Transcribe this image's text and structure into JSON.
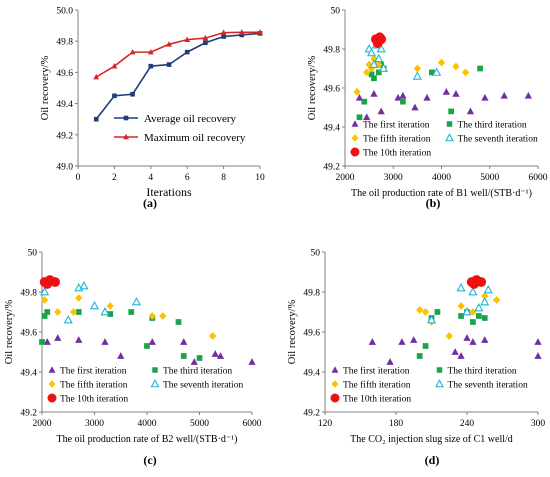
{
  "figure": {
    "title": "",
    "panel_labels": [
      "(a)",
      "(b)",
      "(c)",
      "(d)"
    ]
  },
  "chart_data": [
    {
      "panel": "(a)",
      "type": "line",
      "xlabel": "Iterations",
      "ylabel": "Oil recovery/%",
      "xlim": [
        0,
        10
      ],
      "ylim": [
        49.0,
        50.0
      ],
      "xticks": [
        "0",
        "2",
        "4",
        "6",
        "8",
        "10"
      ],
      "yticks": [
        "49.0",
        "49.2",
        "49.4",
        "49.6",
        "49.8",
        "50.0"
      ],
      "legend_position": "bottom-right",
      "grid": false,
      "series": [
        {
          "name": "Average oil recovery",
          "color": "#1f3f7a",
          "marker": "square",
          "x": [
            1,
            2,
            3,
            4,
            5,
            6,
            7,
            8,
            9,
            10
          ],
          "y": [
            49.3,
            49.45,
            49.46,
            49.64,
            49.65,
            49.73,
            49.79,
            49.83,
            49.84,
            49.85
          ]
        },
        {
          "name": "Maximum oil recovery",
          "color": "#d62728",
          "marker": "triangle",
          "x": [
            1,
            2,
            3,
            4,
            5,
            6,
            7,
            8,
            9,
            10
          ],
          "y": [
            49.57,
            49.64,
            49.73,
            49.73,
            49.78,
            49.81,
            49.82,
            49.855,
            49.857,
            49.857
          ]
        }
      ]
    },
    {
      "panel": "(b)",
      "type": "scatter",
      "xlabel": "The oil production rate of  B1 well/(STB·d⁻¹)",
      "ylabel": "Oil recovery/%",
      "xlim": [
        2000,
        6000
      ],
      "ylim": [
        49.2,
        50.0
      ],
      "xticks": [
        "2000",
        "3000",
        "4000",
        "5000",
        "6000"
      ],
      "yticks": [
        "49.2",
        "49.4",
        "49.6",
        "49.8",
        "50"
      ],
      "legend_position": "bottom",
      "grid": false,
      "series": [
        {
          "name": "The first iteration",
          "color": "#7030a0",
          "marker": "triangle",
          "x": [
            2300,
            2450,
            2600,
            2750,
            3100,
            3200,
            3450,
            3700,
            4100,
            4300,
            4600,
            4900,
            5300,
            5800
          ],
          "y": [
            49.55,
            49.45,
            49.57,
            49.48,
            49.55,
            49.56,
            49.5,
            49.55,
            49.58,
            49.57,
            49.48,
            49.55,
            49.56,
            49.56
          ]
        },
        {
          "name": "The third iteration",
          "color": "#1aa34a",
          "marker": "square",
          "x": [
            2300,
            2400,
            2550,
            2600,
            2700,
            2750,
            2800,
            3200,
            3800,
            4200,
            4800
          ],
          "y": [
            49.45,
            49.53,
            49.67,
            49.65,
            49.68,
            49.72,
            49.7,
            49.53,
            49.68,
            49.48,
            49.7
          ]
        },
        {
          "name": "The fifth iteration",
          "color": "#ffc000",
          "marker": "diamond",
          "x": [
            2250,
            2450,
            2500,
            2550,
            2600,
            2650,
            2700,
            3500,
            4000,
            4300,
            4500
          ],
          "y": [
            49.58,
            49.68,
            49.72,
            49.7,
            49.75,
            49.73,
            49.72,
            49.7,
            49.73,
            49.71,
            49.68
          ]
        },
        {
          "name": "The seventh iteration",
          "color": "#1fb4d8",
          "marker": "triangle-open",
          "x": [
            2500,
            2550,
            2600,
            2650,
            2700,
            2750,
            2800,
            3500,
            3900
          ],
          "y": [
            49.8,
            49.78,
            49.72,
            49.82,
            49.75,
            49.8,
            49.7,
            49.66,
            49.68
          ]
        },
        {
          "name": "The 10th iteration",
          "color": "#ee1111",
          "marker": "circle",
          "x": [
            2640,
            2680,
            2720,
            2750
          ],
          "y": [
            49.85,
            49.83,
            49.86,
            49.85
          ]
        }
      ]
    },
    {
      "panel": "(c)",
      "type": "scatter",
      "xlabel": "The oil production rate of  B2 well/(STB·d⁻¹)",
      "ylabel": "Oil recovery/%",
      "xlim": [
        2000,
        6000
      ],
      "ylim": [
        49.2,
        50.0
      ],
      "xticks": [
        "2000",
        "3000",
        "4000",
        "5000",
        "6000"
      ],
      "yticks": [
        "49.2",
        "49.4",
        "49.6",
        "49.8",
        "50"
      ],
      "legend_position": "bottom",
      "grid": false,
      "series": [
        {
          "name": "The first iteration",
          "color": "#7030a0",
          "marker": "triangle",
          "x": [
            2100,
            2300,
            2700,
            3200,
            3500,
            4100,
            4700,
            4900,
            5300,
            5400,
            6000
          ],
          "y": [
            49.55,
            49.57,
            49.56,
            49.55,
            49.48,
            49.55,
            49.55,
            49.45,
            49.49,
            49.48,
            49.45
          ]
        },
        {
          "name": "The third iteration",
          "color": "#1aa34a",
          "marker": "square",
          "x": [
            2000,
            2050,
            2100,
            2700,
            3300,
            3700,
            4000,
            4100,
            4600,
            4700,
            5000
          ],
          "y": [
            49.55,
            49.68,
            49.7,
            49.7,
            49.69,
            49.7,
            49.53,
            49.67,
            49.65,
            49.48,
            49.47
          ]
        },
        {
          "name": "The fifth iteration",
          "color": "#ffc000",
          "marker": "diamond",
          "x": [
            2050,
            2300,
            2600,
            2700,
            3300,
            4100,
            4300,
            5250
          ],
          "y": [
            49.76,
            49.7,
            49.7,
            49.77,
            49.73,
            49.68,
            49.68,
            49.58
          ]
        },
        {
          "name": "The seventh iteration",
          "color": "#1fb4d8",
          "marker": "triangle-open",
          "x": [
            2050,
            2500,
            2700,
            2800,
            3000,
            3200,
            3800
          ],
          "y": [
            49.8,
            49.66,
            49.82,
            49.83,
            49.73,
            49.7,
            49.75
          ]
        },
        {
          "name": "The 10th iteration",
          "color": "#ee1111",
          "marker": "circle",
          "x": [
            2050,
            2150,
            2250,
            2100
          ],
          "y": [
            49.85,
            49.86,
            49.85,
            49.84
          ]
        }
      ]
    },
    {
      "panel": "(d)",
      "type": "scatter",
      "xlabel": "The CO₂ injection slug size of C1 well/d",
      "ylabel": "Oil recovery/%",
      "xlim": [
        120,
        300
      ],
      "ylim": [
        49.2,
        50.0
      ],
      "xticks": [
        "120",
        "180",
        "240",
        "300"
      ],
      "yticks": [
        "49.2",
        "49.4",
        "49.6",
        "49.8",
        "50"
      ],
      "legend_position": "bottom",
      "grid": false,
      "series": [
        {
          "name": "The first iteration",
          "color": "#7030a0",
          "marker": "triangle",
          "x": [
            160,
            175,
            185,
            195,
            230,
            235,
            240,
            245,
            255,
            300,
            300
          ],
          "y": [
            49.55,
            49.45,
            49.55,
            49.56,
            49.5,
            49.48,
            49.57,
            49.55,
            49.56,
            49.55,
            49.48
          ]
        },
        {
          "name": "The third iteration",
          "color": "#1aa34a",
          "marker": "square",
          "x": [
            200,
            205,
            210,
            215,
            235,
            240,
            245,
            250,
            255
          ],
          "y": [
            49.48,
            49.53,
            49.67,
            49.7,
            49.68,
            49.7,
            49.65,
            49.68,
            49.67
          ]
        },
        {
          "name": "The fifth iteration",
          "color": "#ffc000",
          "marker": "diamond",
          "x": [
            200,
            205,
            210,
            225,
            235,
            245,
            255,
            265
          ],
          "y": [
            49.71,
            49.7,
            49.65,
            49.58,
            49.73,
            49.7,
            49.78,
            49.76
          ]
        },
        {
          "name": "The seventh iteration",
          "color": "#1fb4d8",
          "marker": "triangle-open",
          "x": [
            210,
            235,
            240,
            245,
            250,
            255,
            258
          ],
          "y": [
            49.66,
            49.82,
            49.7,
            49.8,
            49.72,
            49.75,
            49.81
          ]
        },
        {
          "name": "The 10th iteration",
          "color": "#ee1111",
          "marker": "circle",
          "x": [
            244,
            248,
            252,
            246
          ],
          "y": [
            49.85,
            49.86,
            49.85,
            49.84
          ]
        }
      ]
    }
  ]
}
